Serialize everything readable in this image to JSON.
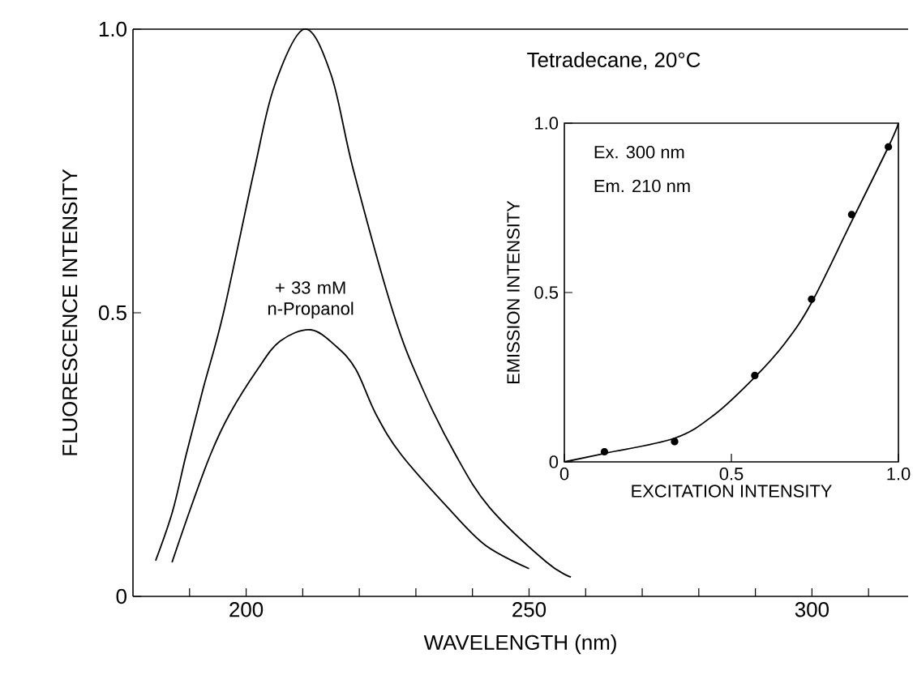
{
  "chart_data": [
    {
      "type": "line",
      "xlabel": "WAVELENGTH (nm)",
      "ylabel": "FLUORESCENCE INTENSITY",
      "annotations": [
        "Tetradecane, 20°C"
      ],
      "xlim": [
        180,
        317
      ],
      "ylim": [
        0,
        1.0
      ],
      "xticks": [
        {
          "value": 190,
          "label": null
        },
        200,
        {
          "value": 210,
          "label": null
        },
        {
          "value": 220,
          "label": null
        },
        {
          "value": 230,
          "label": null
        },
        {
          "value": 240,
          "label": null
        },
        250,
        {
          "value": 260,
          "label": null
        },
        {
          "value": 270,
          "label": null
        },
        {
          "value": 280,
          "label": null
        },
        {
          "value": 290,
          "label": null
        },
        300,
        {
          "value": 310,
          "label": null
        }
      ],
      "yticks": [
        0,
        0.5,
        {
          "value": 1,
          "label": "1.0"
        }
      ],
      "series": [
        {
          "color": "#000000",
          "x": [
            184,
            187,
            189.4,
            192.5,
            196,
            201.4,
            205,
            210.3,
            215,
            219,
            226,
            231,
            237,
            243,
            253,
            257.4
          ],
          "values": [
            0.063,
            0.15,
            0.25,
            0.37,
            0.5,
            0.75,
            0.9,
            1.0,
            0.92,
            0.75,
            0.5,
            0.37,
            0.25,
            0.157,
            0.061,
            0.034
          ]
        },
        {
          "name": "+ 33 mM n-Propanol",
          "color": "#000000",
          "x": [
            186.9,
            190,
            193.7,
            197,
            202,
            206,
            211.4,
            216,
            219.4,
            223,
            227.4,
            235.6,
            242.3,
            250
          ],
          "values": [
            0.06,
            0.15,
            0.25,
            0.32,
            0.4,
            0.45,
            0.47,
            0.44,
            0.4,
            0.32,
            0.25,
            0.157,
            0.09,
            0.049
          ]
        }
      ]
    },
    {
      "type": "scatter",
      "xlabel": "EXCITATION INTENSITY",
      "ylabel": "EMISSION INTENSITY",
      "annotations": [
        "Ex. 300 nm",
        "Em. 210 nm"
      ],
      "xlim": [
        0,
        1
      ],
      "ylim": [
        0,
        1
      ],
      "xticks": [
        0,
        0.5,
        {
          "value": 1,
          "label": "1.0"
        }
      ],
      "yticks": [
        0,
        0.5,
        {
          "value": 1,
          "label": "1.0"
        }
      ],
      "marker": "circle",
      "series": [
        {
          "color": "#000000",
          "x": [
            0.12,
            0.33,
            0.57,
            0.74,
            0.86,
            0.97
          ],
          "values": [
            0.03,
            0.06,
            0.255,
            0.48,
            0.73,
            0.93
          ]
        },
        {
          "type": "line",
          "marker": "none",
          "color": "#000000",
          "x": [
            0,
            0.12,
            0.33,
            0.45,
            0.57,
            0.66,
            0.74,
            0.86,
            0.97,
            1.0
          ],
          "values": [
            0,
            0.025,
            0.07,
            0.14,
            0.25,
            0.35,
            0.47,
            0.71,
            0.93,
            1.0
          ]
        }
      ]
    }
  ]
}
